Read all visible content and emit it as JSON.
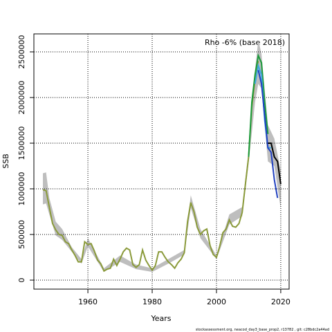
{
  "chart_data": {
    "type": "line",
    "annotation": "Rho -6% (base 2018)",
    "xlabel": "Years",
    "ylabel": "SSB",
    "footer": "stockassessment.org, neacod_day3_base_prop2, r13782 , git: c28bdc2a44ad",
    "xlim": [
      1943.2,
      2022.6
    ],
    "ylim": [
      -98485,
      2696970
    ],
    "xticks": [
      1960,
      1980,
      2000,
      2020
    ],
    "yticks": [
      0,
      500000,
      1000000,
      1500000,
      2000000,
      2500000
    ],
    "grid": true,
    "band": {
      "color": "#bebebe",
      "x": [
        1946,
        1947,
        1948,
        1950,
        1952,
        1955,
        1958,
        1960,
        1965,
        1970,
        1975,
        1980,
        1985,
        1990,
        1992,
        1995,
        2000,
        2004,
        2008,
        2010,
        2012,
        2013,
        2014,
        2016,
        2018,
        2020
      ],
      "upper": [
        1170000,
        1180000,
        900000,
        640000,
        560000,
        360000,
        230000,
        460000,
        130000,
        270000,
        170000,
        130000,
        230000,
        330000,
        930000,
        560000,
        270000,
        720000,
        800000,
        1420000,
        2300000,
        2630000,
        2480000,
        1700000,
        1550000,
        1200000
      ],
      "lower": [
        830000,
        840000,
        720000,
        490000,
        440000,
        310000,
        180000,
        370000,
        90000,
        200000,
        120000,
        90000,
        180000,
        280000,
        790000,
        460000,
        230000,
        610000,
        700000,
        1280000,
        1950000,
        2150000,
        2100000,
        1300000,
        1250000,
        780000
      ]
    },
    "series": [
      {
        "color": "#8a9a3a",
        "x": [
          1946,
          1947,
          1948,
          1949,
          1950,
          1951,
          1952,
          1953,
          1954,
          1955,
          1956,
          1957,
          1958,
          1959,
          1960,
          1961,
          1962,
          1963,
          1964,
          1965,
          1966,
          1967,
          1968,
          1969,
          1970,
          1971,
          1972,
          1973,
          1974,
          1975,
          1976,
          1977,
          1978,
          1979,
          1980,
          1981,
          1982,
          1983,
          1984,
          1985,
          1986,
          1987,
          1988,
          1989,
          1990,
          1991,
          1992,
          1993,
          1994,
          1995,
          1996,
          1997,
          1998,
          1999,
          2000,
          2001,
          2002,
          2003,
          2004,
          2005,
          2006,
          2007,
          2008,
          2009,
          2010,
          2011,
          2012,
          2013
        ],
        "values": [
          990000,
          980000,
          800000,
          620000,
          550000,
          500000,
          490000,
          420000,
          400000,
          330000,
          270000,
          200000,
          200000,
          420000,
          390000,
          400000,
          320000,
          220000,
          180000,
          100000,
          120000,
          130000,
          230000,
          160000,
          230000,
          310000,
          350000,
          330000,
          170000,
          140000,
          170000,
          330000,
          220000,
          160000,
          110000,
          160000,
          310000,
          310000,
          250000,
          200000,
          170000,
          130000,
          190000,
          230000,
          300000,
          640000,
          850000,
          750000,
          580000,
          500000,
          540000,
          560000,
          380000,
          280000,
          250000,
          370000,
          520000,
          560000,
          660000,
          590000,
          580000,
          620000,
          740000,
          1050000,
          1350000,
          1900000,
          2200000,
          2400000
        ]
      },
      {
        "color": "#1a9a3a",
        "x": [
          2010,
          2011,
          2012,
          2013,
          2014,
          2015,
          2016
        ],
        "values": [
          1350000,
          1950000,
          2250000,
          2460000,
          2380000,
          1950000,
          1600000
        ]
      },
      {
        "color": "#3fa9e0",
        "x": [
          2012,
          2013,
          2014,
          2015,
          2016,
          2017
        ],
        "values": [
          2150000,
          2350000,
          2250000,
          1750000,
          1450000,
          1450000
        ]
      },
      {
        "color": "#2040c0",
        "x": [
          2013,
          2014,
          2015,
          2016,
          2017,
          2018,
          2019
        ],
        "values": [
          2300000,
          2150000,
          1800000,
          1450000,
          1400000,
          1100000,
          900000
        ]
      },
      {
        "color": "#000000",
        "x": [
          2016,
          2017,
          2018,
          2019,
          2020
        ],
        "values": [
          1500000,
          1500000,
          1350000,
          1300000,
          1050000
        ]
      }
    ]
  }
}
